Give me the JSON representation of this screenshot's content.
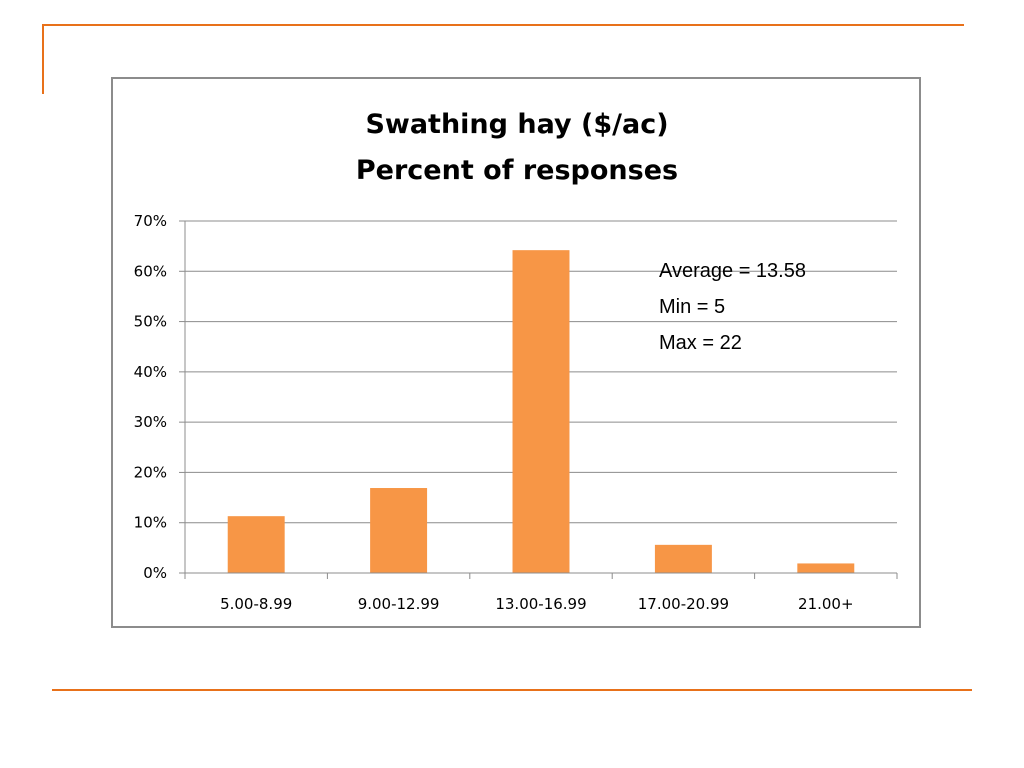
{
  "chart_data": {
    "type": "bar",
    "title": [
      "Swathing hay ($/ac)",
      "Percent of responses"
    ],
    "categories": [
      "5.00-8.99",
      "9.00-12.99",
      "13.00-16.99",
      "17.00-20.99",
      "21.00+"
    ],
    "values": [
      11.3,
      16.9,
      64.2,
      5.6,
      1.9
    ],
    "y_unit": "%",
    "ylim": [
      0,
      70
    ],
    "yticks": [
      "0%",
      "10%",
      "20%",
      "30%",
      "40%",
      "50%",
      "60%",
      "70%"
    ],
    "grid": true,
    "legend": "none",
    "bar_color": "#f79646",
    "annotations": [
      "Average = 13.58",
      "Min = 5",
      "Max = 22"
    ]
  },
  "colors": {
    "accent_rule": "#e8711a",
    "gridline": "#8c8c8c",
    "frame_border": "#8c8c8c"
  }
}
